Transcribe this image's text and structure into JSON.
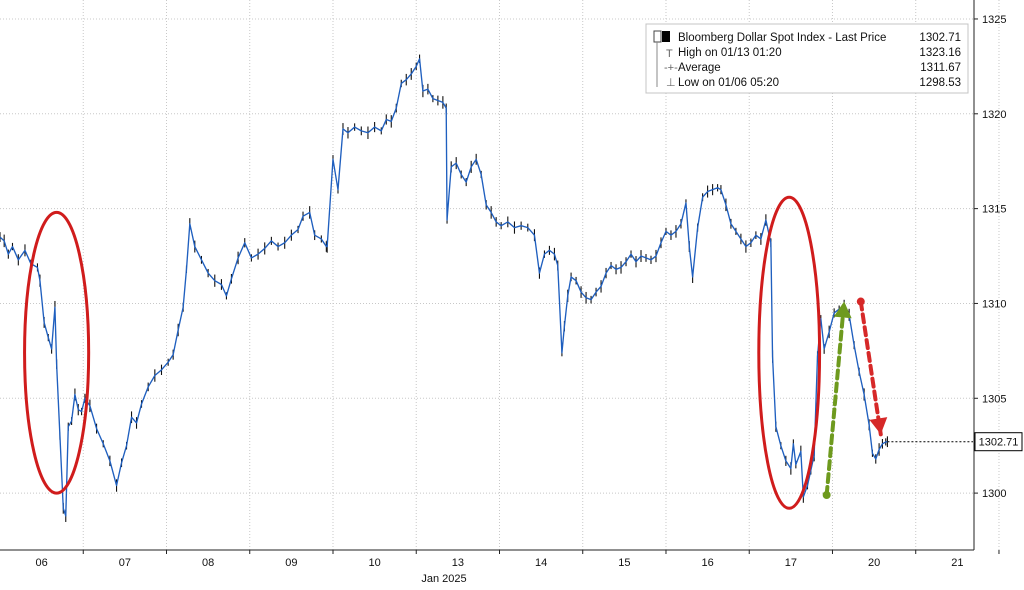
{
  "chart_data": {
    "type": "line",
    "title": "",
    "xlabel": "Jan 2025",
    "ylabel": "",
    "ylim": [
      1297,
      1326
    ],
    "y_ticks": [
      1300,
      1305,
      1310,
      1315,
      1320,
      1325
    ],
    "y_tick_labels": [
      "1300",
      "1305",
      "1310",
      "1315",
      "1320",
      "1325"
    ],
    "x_tick_labels": [
      "06",
      "07",
      "08",
      "09",
      "10",
      "13",
      "14",
      "15",
      "16",
      "17",
      "20",
      "21"
    ],
    "grid": true,
    "legend_position": "top-right",
    "colors": {
      "series": "#1f5fbf",
      "bar": "#111111",
      "grid": "#c8c8c8",
      "ellipse": "#d01c1c",
      "up_arrow": "#6e9a1e",
      "down_arrow": "#d62828",
      "last_label_bg": "#ffffff"
    },
    "legend": {
      "series_name": "Bloomberg Dollar Spot Index - Last Price",
      "series_value": "1302.71",
      "high_label": "High on 01/13 01:20",
      "high_value": "1323.16",
      "average_label": "Average",
      "average_value": "1311.67",
      "low_label": "Low on 01/06 05:20",
      "low_value": "1298.53"
    },
    "last_value_label": "1302.71",
    "series": [
      {
        "name": "Bloomberg Dollar Spot Index - Last Price",
        "points": [
          [
            0.0,
            1313.5
          ],
          [
            0.05,
            1313.3
          ],
          [
            0.1,
            1312.6
          ],
          [
            0.15,
            1313.0
          ],
          [
            0.22,
            1312.3
          ],
          [
            0.3,
            1312.8
          ],
          [
            0.37,
            1312.1
          ],
          [
            0.45,
            1311.9
          ],
          [
            0.48,
            1311.2
          ],
          [
            0.53,
            1309.0
          ],
          [
            0.58,
            1308.2
          ],
          [
            0.62,
            1307.6
          ],
          [
            0.66,
            1309.8
          ],
          [
            0.68,
            1306.8
          ],
          [
            0.72,
            1303.0
          ],
          [
            0.76,
            1299.2
          ],
          [
            0.79,
            1298.8
          ],
          [
            0.82,
            1303.5
          ],
          [
            0.86,
            1303.8
          ],
          [
            0.9,
            1305.2
          ],
          [
            0.94,
            1304.4
          ],
          [
            0.98,
            1304.3
          ],
          [
            1.02,
            1305.0
          ],
          [
            1.08,
            1304.6
          ],
          [
            1.16,
            1303.4
          ],
          [
            1.24,
            1302.6
          ],
          [
            1.32,
            1301.7
          ],
          [
            1.4,
            1300.4
          ],
          [
            1.46,
            1301.6
          ],
          [
            1.52,
            1302.5
          ],
          [
            1.58,
            1304.0
          ],
          [
            1.64,
            1303.7
          ],
          [
            1.7,
            1304.7
          ],
          [
            1.78,
            1305.6
          ],
          [
            1.86,
            1306.2
          ],
          [
            1.94,
            1306.5
          ],
          [
            2.02,
            1306.9
          ],
          [
            2.08,
            1307.3
          ],
          [
            2.14,
            1308.6
          ],
          [
            2.2,
            1309.8
          ],
          [
            2.24,
            1311.8
          ],
          [
            2.28,
            1314.2
          ],
          [
            2.34,
            1313.0
          ],
          [
            2.42,
            1312.3
          ],
          [
            2.5,
            1311.6
          ],
          [
            2.58,
            1311.2
          ],
          [
            2.66,
            1311.0
          ],
          [
            2.72,
            1310.4
          ],
          [
            2.78,
            1311.3
          ],
          [
            2.86,
            1312.4
          ],
          [
            2.94,
            1313.2
          ],
          [
            3.02,
            1312.4
          ],
          [
            3.1,
            1312.6
          ],
          [
            3.18,
            1312.9
          ],
          [
            3.26,
            1313.3
          ],
          [
            3.34,
            1313.0
          ],
          [
            3.42,
            1313.2
          ],
          [
            3.5,
            1313.6
          ],
          [
            3.58,
            1313.9
          ],
          [
            3.64,
            1314.6
          ],
          [
            3.72,
            1314.8
          ],
          [
            3.78,
            1313.6
          ],
          [
            3.86,
            1313.4
          ],
          [
            3.92,
            1313.0
          ],
          [
            3.93,
            1313.0
          ],
          [
            4.0,
            1317.6
          ],
          [
            4.06,
            1316.0
          ],
          [
            4.12,
            1319.2
          ],
          [
            4.18,
            1319.0
          ],
          [
            4.26,
            1319.3
          ],
          [
            4.34,
            1319.1
          ],
          [
            4.42,
            1319.0
          ],
          [
            4.5,
            1319.3
          ],
          [
            4.58,
            1319.1
          ],
          [
            4.64,
            1319.7
          ],
          [
            4.7,
            1319.6
          ],
          [
            4.76,
            1320.3
          ],
          [
            4.82,
            1321.6
          ],
          [
            4.88,
            1321.8
          ],
          [
            4.94,
            1322.1
          ],
          [
            5.0,
            1322.5
          ],
          [
            5.04,
            1322.9
          ],
          [
            5.08,
            1321.2
          ],
          [
            5.14,
            1321.3
          ],
          [
            5.2,
            1320.8
          ],
          [
            5.26,
            1320.7
          ],
          [
            5.32,
            1320.6
          ],
          [
            5.36,
            1320.3
          ],
          [
            5.37,
            1314.4
          ],
          [
            5.42,
            1317.2
          ],
          [
            5.48,
            1317.4
          ],
          [
            5.54,
            1316.8
          ],
          [
            5.6,
            1316.4
          ],
          [
            5.66,
            1317.2
          ],
          [
            5.72,
            1317.6
          ],
          [
            5.78,
            1316.8
          ],
          [
            5.84,
            1315.2
          ],
          [
            5.9,
            1314.8
          ],
          [
            5.96,
            1314.3
          ],
          [
            6.02,
            1314.1
          ],
          [
            6.1,
            1314.3
          ],
          [
            6.18,
            1314.0
          ],
          [
            6.26,
            1314.1
          ],
          [
            6.34,
            1314.0
          ],
          [
            6.42,
            1313.6
          ],
          [
            6.48,
            1311.6
          ],
          [
            6.54,
            1312.6
          ],
          [
            6.6,
            1312.8
          ],
          [
            6.66,
            1312.6
          ],
          [
            6.7,
            1312.0
          ],
          [
            6.75,
            1307.4
          ],
          [
            6.78,
            1308.8
          ],
          [
            6.82,
            1310.4
          ],
          [
            6.86,
            1311.4
          ],
          [
            6.92,
            1311.2
          ],
          [
            6.98,
            1310.6
          ],
          [
            7.04,
            1310.3
          ],
          [
            7.1,
            1310.2
          ],
          [
            7.16,
            1310.6
          ],
          [
            7.22,
            1310.9
          ],
          [
            7.28,
            1311.6
          ],
          [
            7.34,
            1312.0
          ],
          [
            7.4,
            1311.8
          ],
          [
            7.46,
            1311.9
          ],
          [
            7.52,
            1312.2
          ],
          [
            7.58,
            1312.6
          ],
          [
            7.64,
            1312.2
          ],
          [
            7.7,
            1312.5
          ],
          [
            7.76,
            1312.4
          ],
          [
            7.82,
            1312.3
          ],
          [
            7.88,
            1312.5
          ],
          [
            7.94,
            1313.2
          ],
          [
            8.0,
            1313.8
          ],
          [
            8.06,
            1313.6
          ],
          [
            8.12,
            1313.8
          ],
          [
            8.18,
            1314.2
          ],
          [
            8.24,
            1315.3
          ],
          [
            8.28,
            1313.0
          ],
          [
            8.32,
            1311.4
          ],
          [
            8.38,
            1314.0
          ],
          [
            8.44,
            1315.6
          ],
          [
            8.5,
            1315.9
          ],
          [
            8.56,
            1316.0
          ],
          [
            8.62,
            1316.1
          ],
          [
            8.66,
            1316.0
          ],
          [
            8.72,
            1315.2
          ],
          [
            8.78,
            1314.2
          ],
          [
            8.84,
            1313.8
          ],
          [
            8.9,
            1313.4
          ],
          [
            8.96,
            1313.0
          ],
          [
            9.02,
            1313.2
          ],
          [
            9.08,
            1313.6
          ],
          [
            9.14,
            1313.4
          ],
          [
            9.2,
            1314.4
          ],
          [
            9.24,
            1313.6
          ],
          [
            9.26,
            1313.2
          ],
          [
            9.28,
            1307.2
          ],
          [
            9.32,
            1303.5
          ],
          [
            9.38,
            1302.5
          ],
          [
            9.44,
            1301.7
          ],
          [
            9.5,
            1301.3
          ],
          [
            9.53,
            1302.6
          ],
          [
            9.56,
            1301.5
          ],
          [
            9.62,
            1302.2
          ],
          [
            9.65,
            1299.8
          ],
          [
            9.7,
            1300.4
          ],
          [
            9.74,
            1301.2
          ],
          [
            9.78,
            1302.0
          ],
          [
            9.82,
            1307.2
          ],
          [
            9.86,
            1309.2
          ],
          [
            9.9,
            1307.6
          ],
          [
            9.96,
            1308.5
          ],
          [
            10.02,
            1309.5
          ],
          [
            10.08,
            1309.7
          ],
          [
            10.14,
            1309.9
          ],
          [
            10.2,
            1309.4
          ],
          [
            10.26,
            1307.8
          ],
          [
            10.32,
            1306.4
          ],
          [
            10.38,
            1305.2
          ],
          [
            10.44,
            1303.6
          ],
          [
            10.48,
            1302.1
          ],
          [
            10.52,
            1301.8
          ],
          [
            10.56,
            1302.3
          ],
          [
            10.6,
            1302.6
          ],
          [
            10.64,
            1302.7
          ],
          [
            10.66,
            1302.71
          ]
        ]
      }
    ],
    "annotations": [
      {
        "type": "ellipse",
        "label": "",
        "x_center": 0.68,
        "y_center": 1307.4,
        "x_half": 0.385,
        "y_half": 7.4
      },
      {
        "type": "ellipse",
        "label": "",
        "x_center": 9.48,
        "y_center": 1307.4,
        "x_half": 0.365,
        "y_half": 8.2
      },
      {
        "type": "arrow",
        "direction": "up",
        "x_start": 9.93,
        "y_start": 1299.9,
        "x_end": 10.14,
        "y_end": 1310.1
      },
      {
        "type": "arrow",
        "direction": "down",
        "x_start": 10.34,
        "y_start": 1310.1,
        "x_end": 10.58,
        "y_end": 1303.1
      }
    ]
  }
}
